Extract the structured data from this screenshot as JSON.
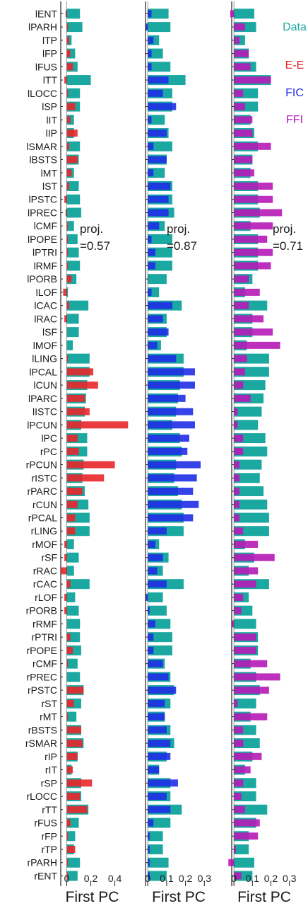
{
  "chart_data": {
    "type": "bar",
    "categories": [
      "lENT",
      "lPARH",
      "lTP",
      "lFP",
      "lFUS",
      "lTT",
      "lLOCC",
      "lSP",
      "lIT",
      "lIP",
      "lSMAR",
      "lBSTS",
      "lMT",
      "lST",
      "lPSTC",
      "lPREC",
      "lCMF",
      "lPOPE",
      "lPTRI",
      "lRMF",
      "lPORB",
      "lLOF",
      "lCAC",
      "lRAC",
      "lSF",
      "lMOF",
      "lLING",
      "lPCAL",
      "lCUN",
      "lPARC",
      "lISTC",
      "lPCUN",
      "lPC",
      "rPC",
      "rPCUN",
      "rISTC",
      "rPARC",
      "rCUN",
      "rPCAL",
      "rLING",
      "rMOF",
      "rSF",
      "rRAC",
      "rCAC",
      "rLOF",
      "rPORB",
      "rRMF",
      "rPTRI",
      "rPOPE",
      "rCMF",
      "rPREC",
      "rPSTC",
      "rST",
      "rMT",
      "rBSTS",
      "rSMAR",
      "rIP",
      "rIT",
      "rSP",
      "rLOCC",
      "rTT",
      "rFUS",
      "rFP",
      "rTP",
      "rPARH",
      "rENT"
    ],
    "legend": [
      {
        "label": "Data",
        "color": "#1aa8a0"
      },
      {
        "label": "E-E",
        "color": "#e8262a"
      },
      {
        "label": "FIC",
        "color": "#1f2ee6"
      },
      {
        "label": "FFI",
        "color": "#b61ab6"
      }
    ],
    "panels": [
      {
        "xlabel": "First PC",
        "xlim": [
          -0.05,
          0.52
        ],
        "xticks": [
          0,
          0.2,
          0.4
        ],
        "xtick_labels": [
          "0",
          "0.2",
          "0.4"
        ],
        "annotation": [
          "proj.",
          "=0.57"
        ],
        "model": "E-E",
        "color": "#e8262a",
        "data_values": [
          0.11,
          0.13,
          0.04,
          0.07,
          0.09,
          0.2,
          0.11,
          0.11,
          0.06,
          0.06,
          0.11,
          0.1,
          0.06,
          0.1,
          0.11,
          0.12,
          0.06,
          0.09,
          0.1,
          0.11,
          0.08,
          0.01,
          0.18,
          0.1,
          0.1,
          0.05,
          0.19,
          0.19,
          0.17,
          0.16,
          0.15,
          0.12,
          0.17,
          0.17,
          0.14,
          0.13,
          0.15,
          0.18,
          0.19,
          0.19,
          0.06,
          0.1,
          0.06,
          0.19,
          0.07,
          0.1,
          0.11,
          0.11,
          0.12,
          0.09,
          0.11,
          0.14,
          0.12,
          0.08,
          0.12,
          0.14,
          0.09,
          0.04,
          0.12,
          0.12,
          0.18,
          0.1,
          0.07,
          0.06,
          0.11,
          0.09
        ],
        "model_values": [
          -0.01,
          0.01,
          0.02,
          0.03,
          0.05,
          -0.02,
          0.01,
          0.07,
          0.03,
          0.09,
          0.02,
          0.09,
          0.04,
          0.02,
          -0.02,
          -0.01,
          0.01,
          0.01,
          0.01,
          0.01,
          0.04,
          -0.03,
          0.02,
          -0.02,
          0.0,
          0.0,
          0.01,
          0.22,
          0.26,
          0.15,
          0.19,
          0.51,
          0.09,
          0.1,
          0.4,
          0.31,
          0.13,
          0.09,
          0.07,
          0.07,
          -0.02,
          -0.02,
          -0.05,
          0.03,
          -0.02,
          -0.02,
          0.0,
          0.03,
          0.05,
          0.01,
          0.0,
          0.14,
          0.06,
          0.01,
          0.12,
          0.13,
          0.09,
          0.05,
          0.21,
          0.11,
          0.17,
          0.03,
          0.01,
          0.07,
          0.01,
          0.01
        ]
      },
      {
        "xlabel": "First PC",
        "xlim": [
          -0.012,
          0.37
        ],
        "xticks": [
          0,
          0.1,
          0.2,
          0.3
        ],
        "xtick_labels": [
          "0",
          "0.1",
          "0.2",
          "0.3"
        ],
        "annotation": [
          "proj.",
          "=0.87"
        ],
        "model": "FIC",
        "color": "#1f2ee6",
        "data_values": [
          0.11,
          0.12,
          0.06,
          0.08,
          0.12,
          0.2,
          0.13,
          0.13,
          0.09,
          0.11,
          0.13,
          0.1,
          0.09,
          0.13,
          0.13,
          0.14,
          0.09,
          0.13,
          0.13,
          0.13,
          0.1,
          0.06,
          0.18,
          0.1,
          0.1,
          0.07,
          0.19,
          0.19,
          0.17,
          0.16,
          0.15,
          0.13,
          0.17,
          0.18,
          0.15,
          0.14,
          0.16,
          0.18,
          0.19,
          0.19,
          0.06,
          0.11,
          0.08,
          0.19,
          0.08,
          0.1,
          0.12,
          0.13,
          0.13,
          0.09,
          0.12,
          0.14,
          0.12,
          0.09,
          0.12,
          0.14,
          0.1,
          0.06,
          0.12,
          0.12,
          0.18,
          0.12,
          0.08,
          0.08,
          0.11,
          0.1
        ],
        "model_values": [
          0.02,
          -0.01,
          0.03,
          0.02,
          0.02,
          0.11,
          0.08,
          0.15,
          0.02,
          0.1,
          0.03,
          0.1,
          0.03,
          0.12,
          0.11,
          0.11,
          0.06,
          0.02,
          0.04,
          0.04,
          0.0,
          0.02,
          0.13,
          0.08,
          0.11,
          0.05,
          0.15,
          0.25,
          0.25,
          0.2,
          0.24,
          0.25,
          0.22,
          0.21,
          0.28,
          0.26,
          0.24,
          0.27,
          0.24,
          0.1,
          0.04,
          0.08,
          0.05,
          0.1,
          -0.01,
          0.01,
          0.04,
          0.03,
          0.03,
          0.08,
          0.11,
          0.15,
          0.09,
          0.09,
          0.1,
          0.12,
          0.12,
          0.06,
          0.16,
          0.1,
          0.12,
          0.03,
          0.01,
          0.01,
          0.01,
          0.01
        ]
      },
      {
        "xlabel": "First PC",
        "xlim": [
          -0.012,
          0.37
        ],
        "xticks": [
          0,
          0.1,
          0.2,
          0.3
        ],
        "xtick_labels": [
          "0",
          "0.1",
          "0.2",
          "0.3"
        ],
        "annotation": [
          "proj.",
          "=0.71"
        ],
        "model": "FFI",
        "color": "#b61ab6",
        "data_values": [
          0.11,
          0.12,
          0.06,
          0.08,
          0.12,
          0.2,
          0.13,
          0.13,
          0.09,
          0.11,
          0.13,
          0.1,
          0.09,
          0.13,
          0.13,
          0.14,
          0.09,
          0.13,
          0.13,
          0.13,
          0.1,
          0.06,
          0.18,
          0.1,
          0.1,
          0.07,
          0.19,
          0.19,
          0.17,
          0.16,
          0.15,
          0.13,
          0.17,
          0.18,
          0.15,
          0.14,
          0.16,
          0.18,
          0.19,
          0.19,
          0.06,
          0.11,
          0.08,
          0.19,
          0.08,
          0.1,
          0.12,
          0.13,
          0.13,
          0.09,
          0.12,
          0.14,
          0.12,
          0.09,
          0.12,
          0.14,
          0.1,
          0.06,
          0.12,
          0.12,
          0.18,
          0.12,
          0.08,
          0.08,
          0.11,
          0.1
        ],
        "model_values": [
          -0.02,
          0.06,
          0.03,
          0.08,
          0.09,
          0.2,
          0.05,
          0.06,
          0.1,
          0.1,
          0.2,
          0.1,
          0.11,
          0.21,
          0.21,
          0.26,
          0.21,
          0.18,
          0.21,
          0.2,
          0.08,
          0.14,
          0.08,
          0.16,
          0.21,
          0.25,
          0.07,
          0.06,
          0.05,
          0.09,
          0.02,
          0.02,
          0.05,
          0.05,
          0.03,
          0.03,
          0.03,
          0.03,
          0.03,
          0.05,
          0.13,
          0.22,
          0.13,
          0.12,
          0.05,
          0.04,
          -0.01,
          0.12,
          0.12,
          0.18,
          0.25,
          0.19,
          0.02,
          0.18,
          0.05,
          0.05,
          0.15,
          0.09,
          0.05,
          0.04,
          0.06,
          0.14,
          0.13,
          0.01,
          -0.03,
          0.04
        ]
      }
    ]
  }
}
